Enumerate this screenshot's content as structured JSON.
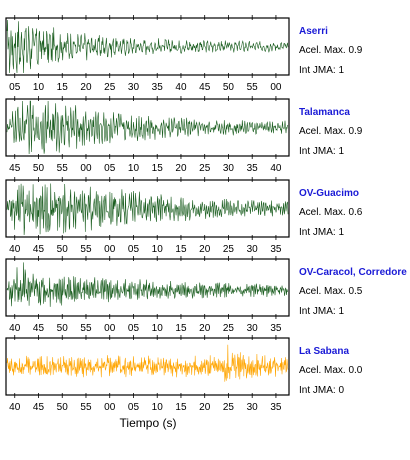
{
  "chart_data": {
    "type": "line",
    "xlabel": "Tiempo (s)",
    "panels": [
      {
        "station": "Aserri",
        "accel_label": "Acel. Max. 0.9",
        "jma_label": "Int JMA: 1",
        "color": "#1b5e20",
        "ticks": [
          "05",
          "10",
          "15",
          "20",
          "25",
          "30",
          "35",
          "40",
          "45",
          "50",
          "55",
          "00"
        ],
        "amplitude_envelope": [
          [
            0,
            1.0
          ],
          [
            0.08,
            0.85
          ],
          [
            0.2,
            0.5
          ],
          [
            0.4,
            0.3
          ],
          [
            0.7,
            0.2
          ],
          [
            1.0,
            0.15
          ]
        ],
        "baseline": 0.0
      },
      {
        "station": "Talamanca",
        "accel_label": "Acel. Max. 0.9",
        "jma_label": "Int JMA: 1",
        "color": "#1b5e20",
        "ticks": [
          "45",
          "50",
          "55",
          "00",
          "05",
          "10",
          "15",
          "20",
          "25",
          "30",
          "35",
          "40"
        ],
        "amplitude_envelope": [
          [
            0,
            0.3
          ],
          [
            0.06,
            0.95
          ],
          [
            0.2,
            0.75
          ],
          [
            0.45,
            0.45
          ],
          [
            0.7,
            0.25
          ],
          [
            1.0,
            0.2
          ]
        ],
        "baseline": 0.0
      },
      {
        "station": "OV-Guacimo",
        "accel_label": "Acel. Max. 0.6",
        "jma_label": "Int JMA: 1",
        "color": "#1b5e20",
        "ticks": [
          "40",
          "45",
          "50",
          "55",
          "00",
          "05",
          "10",
          "15",
          "20",
          "25",
          "30",
          "35"
        ],
        "amplitude_envelope": [
          [
            0,
            0.2
          ],
          [
            0.04,
            0.95
          ],
          [
            0.2,
            0.75
          ],
          [
            0.5,
            0.5
          ],
          [
            0.75,
            0.3
          ],
          [
            1.0,
            0.25
          ]
        ],
        "baseline": 0.0
      },
      {
        "station": "OV-Caracol, Corredore",
        "accel_label": "Acel. Max. 0.5",
        "jma_label": "Int JMA: 1",
        "color": "#1b5e20",
        "ticks": [
          "40",
          "45",
          "50",
          "55",
          "00",
          "05",
          "10",
          "15",
          "20",
          "25",
          "30",
          "35"
        ],
        "amplitude_envelope": [
          [
            0,
            0.15
          ],
          [
            0.03,
            0.95
          ],
          [
            0.12,
            0.55
          ],
          [
            0.4,
            0.35
          ],
          [
            0.7,
            0.25
          ],
          [
            1.0,
            0.2
          ]
        ],
        "baseline": -0.1
      },
      {
        "station": "La Sabana",
        "accel_label": "Acel. Max. 0.0",
        "jma_label": "Int JMA: 0",
        "color": "#ffa500",
        "ticks": [
          "40",
          "45",
          "50",
          "55",
          "00",
          "05",
          "10",
          "15",
          "20",
          "25",
          "30",
          "35"
        ],
        "amplitude_envelope": [
          [
            0,
            0.3
          ],
          [
            0.25,
            0.35
          ],
          [
            0.5,
            0.33
          ],
          [
            0.77,
            0.35
          ],
          [
            0.785,
            0.9
          ],
          [
            0.8,
            0.45
          ],
          [
            1.0,
            0.3
          ]
        ],
        "baseline": 0.0
      }
    ]
  }
}
